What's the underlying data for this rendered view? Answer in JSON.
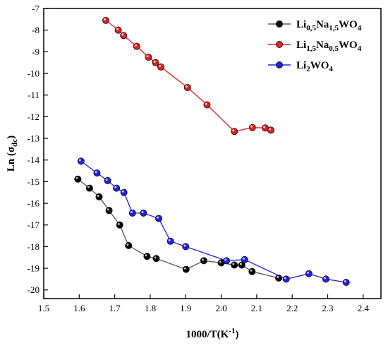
{
  "chart_data": {
    "type": "line",
    "xlabel": "1000/T(K⁻¹)",
    "ylabel": "Ln (σdc)",
    "xlim": [
      1.5,
      2.45
    ],
    "ylim": [
      -20.4,
      -7
    ],
    "xticks": [
      1.5,
      1.6,
      1.7,
      1.8,
      1.9,
      2.0,
      2.1,
      2.2,
      2.3,
      2.4
    ],
    "yticks": [
      -20,
      -19,
      -18,
      -17,
      -16,
      -15,
      -14,
      -13,
      -12,
      -11,
      -10,
      -9,
      -8,
      -7
    ],
    "xtick_labels": [
      "1.5",
      "1.6",
      "1.7",
      "1.8",
      "1.9",
      "2.0",
      "2.1",
      "2.2",
      "2.3",
      "2.4"
    ],
    "ytick_labels": [
      "-20",
      "-19",
      "-18",
      "-17",
      "-16",
      "-15",
      "-14",
      "-13",
      "-12",
      "-11",
      "-10",
      "-9",
      "-8",
      "-7"
    ],
    "legend_position": "top-right",
    "series": [
      {
        "name": "Li0.5Na1.5WO4",
        "label_main": "Li",
        "label_sub1": "0,5",
        "label_mid": "Na",
        "label_sub2": "1,5",
        "label_end": "WO",
        "label_sub3": "4",
        "color": "#000000",
        "line_color": "#555555",
        "points": [
          [
            1.596,
            -14.88
          ],
          [
            1.629,
            -15.3
          ],
          [
            1.656,
            -15.7
          ],
          [
            1.684,
            -16.33
          ],
          [
            1.714,
            -17.0
          ],
          [
            1.739,
            -17.95
          ],
          [
            1.791,
            -18.45
          ],
          [
            1.817,
            -18.55
          ],
          [
            1.901,
            -19.05
          ],
          [
            1.951,
            -18.65
          ],
          [
            2.0,
            -18.75
          ],
          [
            2.037,
            -18.85
          ],
          [
            2.058,
            -18.85
          ],
          [
            2.087,
            -19.15
          ],
          [
            2.162,
            -19.45
          ]
        ]
      },
      {
        "name": "Li1.5Na0.5WO4",
        "label_main": "Li",
        "label_sub1": "1,5",
        "label_mid": "Na",
        "label_sub2": "0,5",
        "label_end": "WO",
        "label_sub3": "4",
        "color": "#e32020",
        "line_color": "#e32020",
        "points": [
          [
            1.675,
            -7.55
          ],
          [
            1.71,
            -8.0
          ],
          [
            1.725,
            -8.25
          ],
          [
            1.762,
            -8.75
          ],
          [
            1.795,
            -9.25
          ],
          [
            1.815,
            -9.5
          ],
          [
            1.83,
            -9.7
          ],
          [
            1.905,
            -10.65
          ],
          [
            1.96,
            -11.45
          ],
          [
            2.037,
            -12.68
          ],
          [
            2.088,
            -12.5
          ],
          [
            2.124,
            -12.52
          ],
          [
            2.14,
            -12.62
          ]
        ]
      },
      {
        "name": "Li2WO4",
        "label_main": "Li",
        "label_sub1": "2",
        "label_mid": "",
        "label_sub2": "",
        "label_end": "WO",
        "label_sub3": "4",
        "color": "#2020e0",
        "line_color": "#2020e0",
        "points": [
          [
            1.605,
            -14.05
          ],
          [
            1.65,
            -14.6
          ],
          [
            1.68,
            -14.95
          ],
          [
            1.705,
            -15.3
          ],
          [
            1.726,
            -15.5
          ],
          [
            1.75,
            -16.45
          ],
          [
            1.781,
            -16.45
          ],
          [
            1.824,
            -16.7
          ],
          [
            1.857,
            -17.75
          ],
          [
            1.9,
            -18.0
          ],
          [
            2.015,
            -18.65
          ],
          [
            2.066,
            -18.6
          ],
          [
            2.183,
            -19.5
          ],
          [
            2.247,
            -19.25
          ],
          [
            2.295,
            -19.5
          ],
          [
            2.352,
            -19.65
          ]
        ]
      }
    ]
  }
}
